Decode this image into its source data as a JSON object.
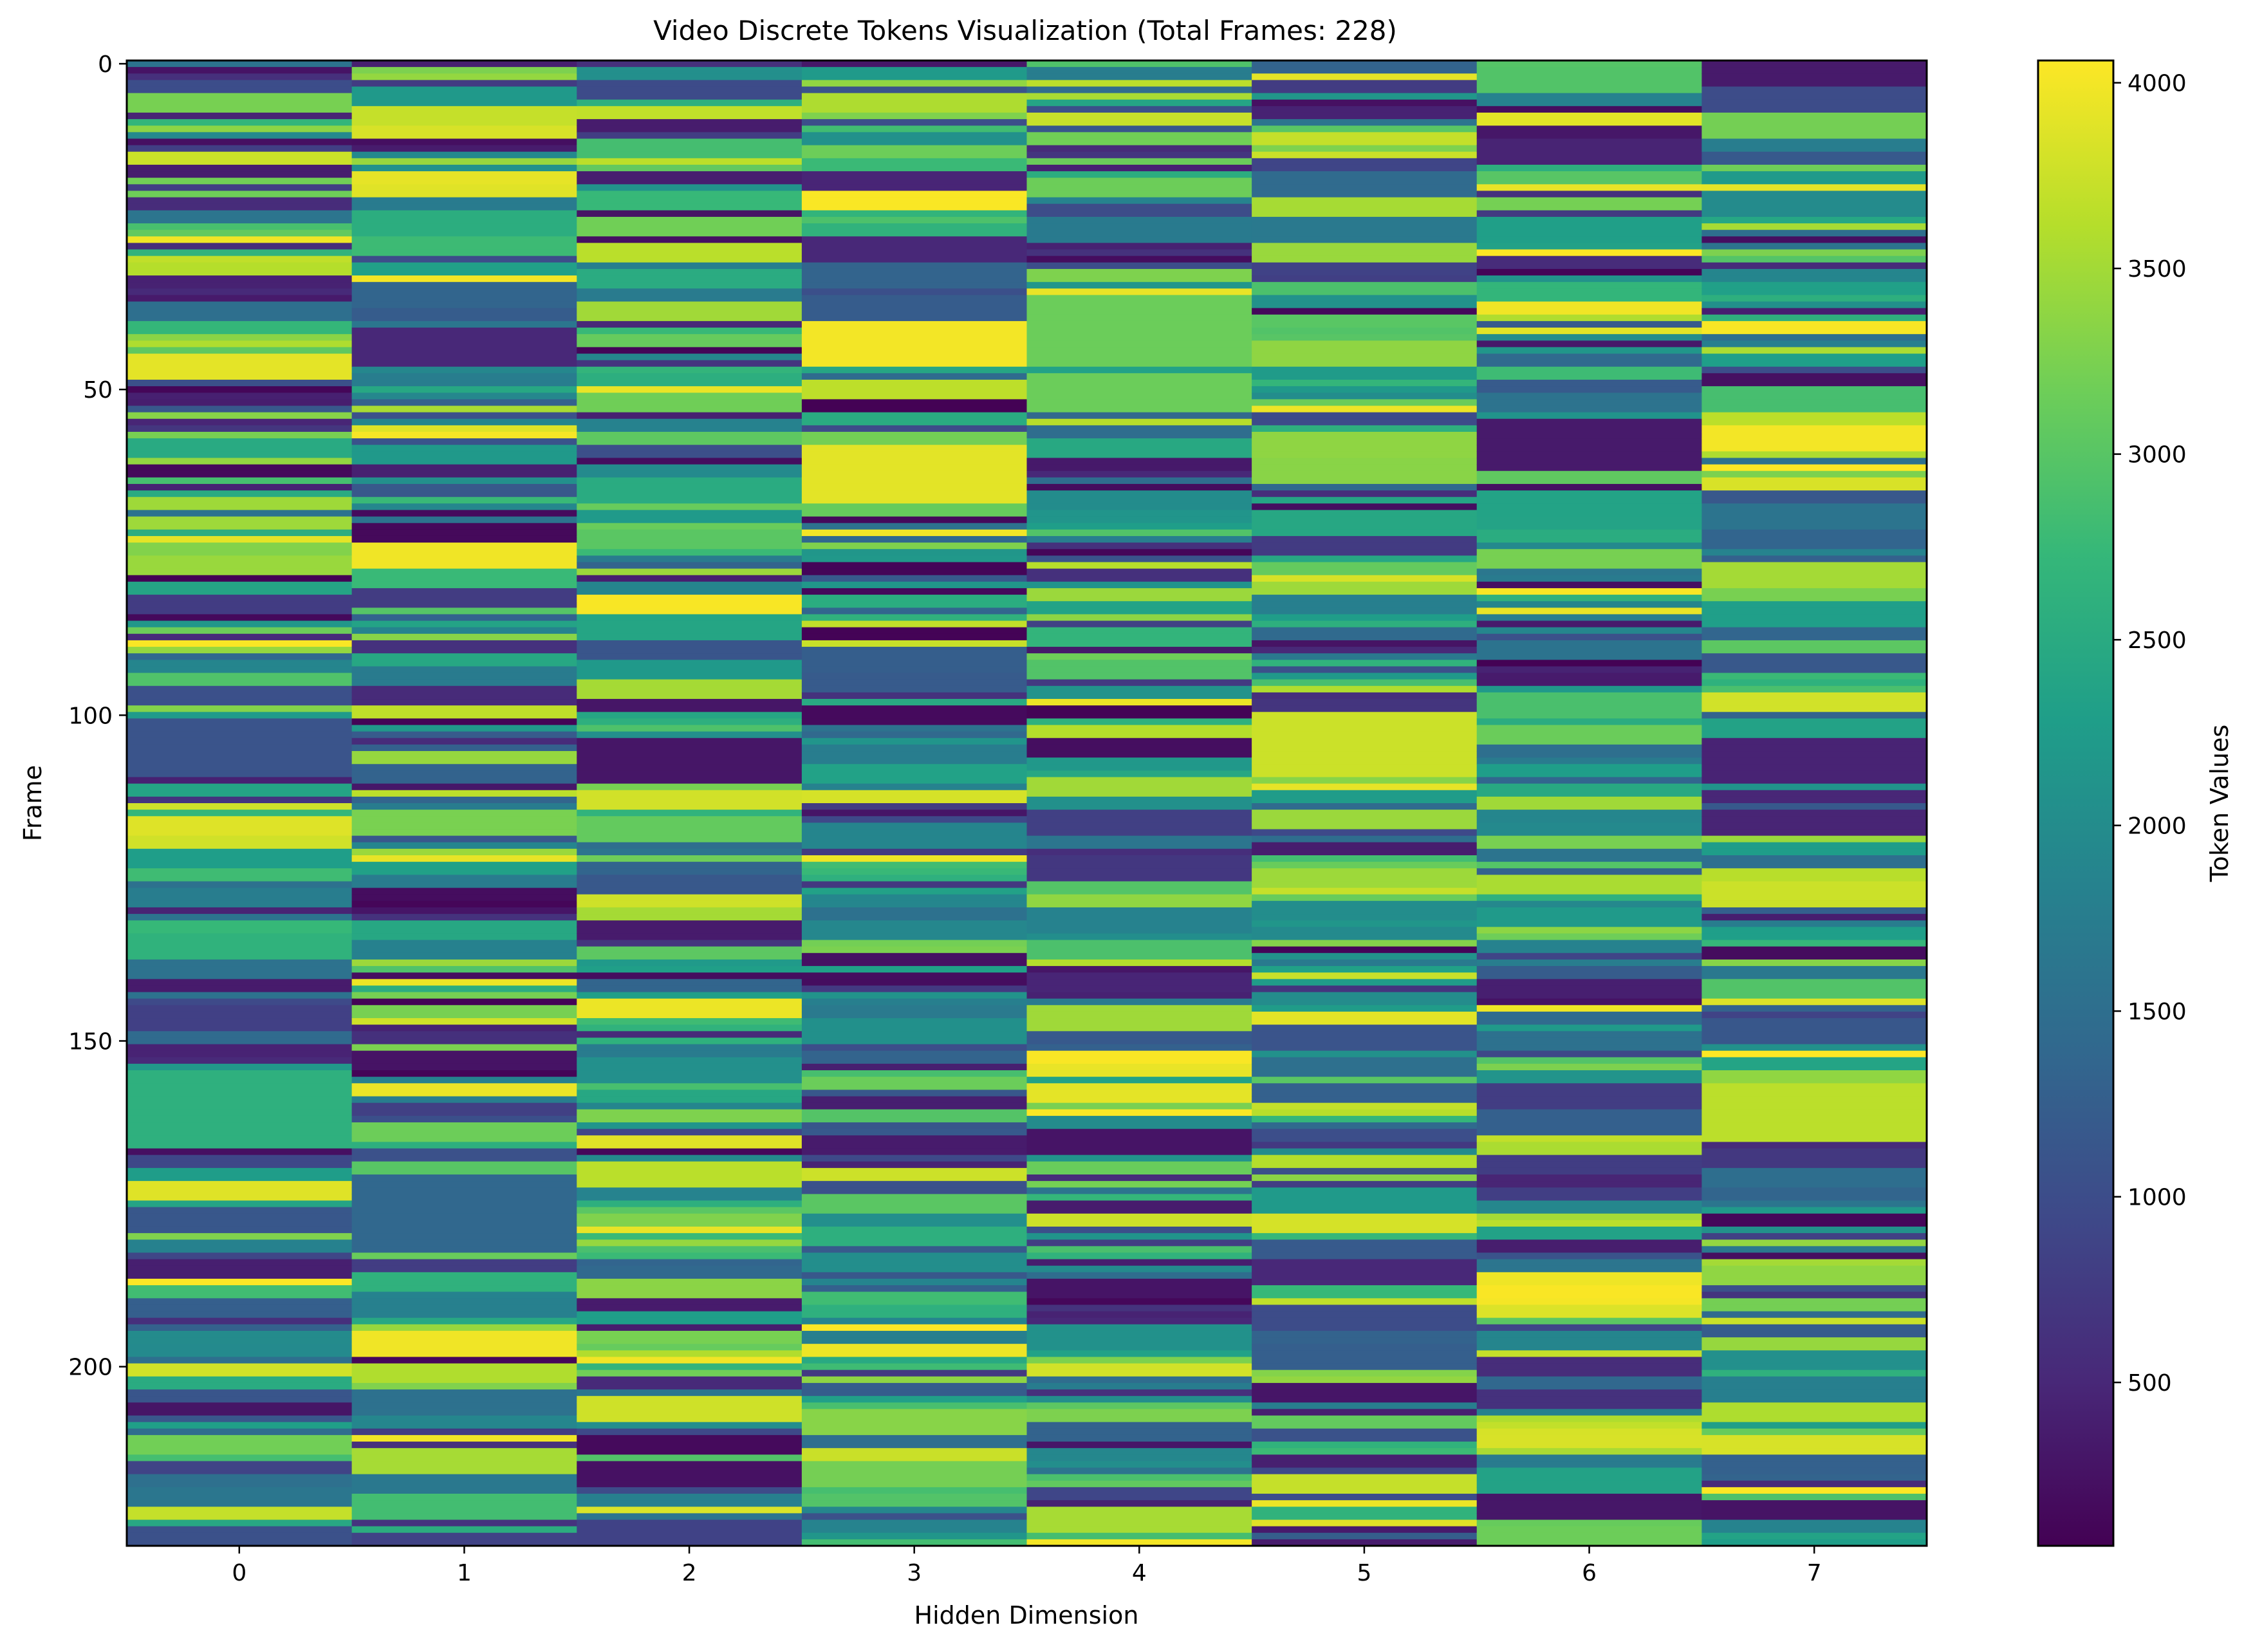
{
  "chart_data": {
    "type": "heatmap",
    "title": "Video Discrete Tokens Visualization (Total Frames: 228)",
    "xlabel": "Hidden Dimension",
    "ylabel": "Frame",
    "frames": 228,
    "columns": [
      0,
      1,
      2,
      3,
      4,
      5,
      6,
      7
    ],
    "x_ticks": [
      "0",
      "1",
      "2",
      "3",
      "4",
      "5",
      "6",
      "7"
    ],
    "y_ticks": [
      0,
      50,
      100,
      150,
      200
    ],
    "colormap": "viridis",
    "colorbar": {
      "label": "Token Values",
      "range": [
        60,
        4060
      ],
      "ticks": [
        500,
        1000,
        1500,
        2000,
        2500,
        3000,
        3500,
        4000
      ]
    },
    "grid": false,
    "notable_blocks": [
      {
        "column": 1,
        "frames": [
          41,
          46
        ],
        "value": 500
      },
      {
        "column": 3,
        "frames": [
          40,
          46
        ],
        "value": 4000
      },
      {
        "column": 3,
        "frames": [
          59,
          67
        ],
        "value": 3900
      },
      {
        "column": 4,
        "frames": [
          36,
          46
        ],
        "value": 3150
      },
      {
        "column": 4,
        "frames": [
          48,
          53
        ],
        "value": 3150
      },
      {
        "column": 2,
        "frames": [
          104,
          110
        ],
        "value": 300
      },
      {
        "column": 5,
        "frames": [
          101,
          109
        ],
        "value": 3750
      },
      {
        "column": 6,
        "frames": [
          55,
          62
        ],
        "value": 350
      },
      {
        "column": 7,
        "frames": [
          104,
          110
        ],
        "value": 450
      },
      {
        "column": 7,
        "frames": [
          157,
          165
        ],
        "value": 3650
      },
      {
        "column": 0,
        "frames": [
          101,
          109
        ],
        "value": 1100
      },
      {
        "column": 0,
        "frames": [
          155,
          166
        ],
        "value": 2600
      },
      {
        "column": 1,
        "frames": [
          171,
          182
        ],
        "value": 1400
      }
    ]
  }
}
